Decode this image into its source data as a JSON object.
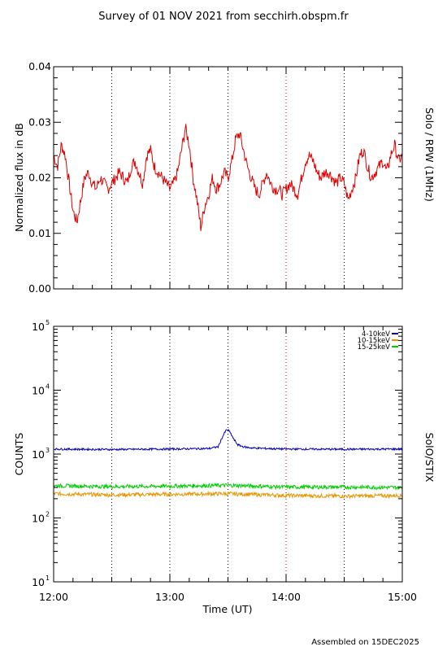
{
  "page": {
    "title": "Survey of 01 NOV 2021 from secchirh.obspm.fr",
    "footer": "Assembled on 15DEC2025"
  },
  "chart_data": [
    {
      "type": "line",
      "ylabel": "Normalized flux in dB",
      "right_label": "Solo / RPW (1MHz)",
      "xlim": [
        "12:00",
        "15:00"
      ],
      "ylim": [
        0.0,
        0.04
      ],
      "yticks": [
        "0.00",
        "0.01",
        "0.02",
        "0.03",
        "0.04"
      ],
      "x_minor_ticks_per_major": 6,
      "y_minor_ticks_per_major": 5,
      "grid": "dotted vertical lines at 12:30, 13:00, 13:30, 14:00, 14:30",
      "grid_colors": [
        "#000000",
        "#000000",
        "#000000",
        "#cc0000",
        "#000000"
      ],
      "series": [
        {
          "color": "#dd0000",
          "x": [
            "12:00",
            "12:02",
            "12:04",
            "12:06",
            "12:08",
            "12:10",
            "12:12",
            "12:14",
            "12:16",
            "12:18",
            "12:20",
            "12:22",
            "12:24",
            "12:26",
            "12:28",
            "12:30",
            "12:32",
            "12:34",
            "12:36",
            "12:38",
            "12:40",
            "12:42",
            "12:44",
            "12:46",
            "12:48",
            "12:50",
            "12:52",
            "12:54",
            "12:56",
            "12:58",
            "13:00",
            "13:02",
            "13:04",
            "13:06",
            "13:08",
            "13:10",
            "13:12",
            "13:14",
            "13:16",
            "13:18",
            "13:20",
            "13:22",
            "13:24",
            "13:26",
            "13:28",
            "13:30",
            "13:32",
            "13:34",
            "13:36",
            "13:38",
            "13:40",
            "13:42",
            "13:44",
            "13:46",
            "13:48",
            "13:50",
            "13:52",
            "13:54",
            "13:56",
            "13:58",
            "14:00",
            "14:02",
            "14:04",
            "14:06",
            "14:08",
            "14:10",
            "14:12",
            "14:14",
            "14:16",
            "14:18",
            "14:20",
            "14:22",
            "14:24",
            "14:26",
            "14:28",
            "14:30",
            "14:32",
            "14:34",
            "14:36",
            "14:38",
            "14:40",
            "14:42",
            "14:44",
            "14:46",
            "14:48",
            "14:50",
            "14:52",
            "14:54",
            "14:56",
            "14:58",
            "15:00"
          ],
          "y": [
            0.024,
            0.022,
            0.026,
            0.024,
            0.019,
            0.014,
            0.012,
            0.016,
            0.02,
            0.021,
            0.019,
            0.018,
            0.02,
            0.019,
            0.018,
            0.019,
            0.02,
            0.021,
            0.02,
            0.019,
            0.022,
            0.023,
            0.021,
            0.019,
            0.024,
            0.025,
            0.022,
            0.021,
            0.02,
            0.019,
            0.018,
            0.019,
            0.021,
            0.025,
            0.029,
            0.026,
            0.02,
            0.016,
            0.011,
            0.015,
            0.017,
            0.02,
            0.018,
            0.019,
            0.021,
            0.02,
            0.023,
            0.027,
            0.028,
            0.025,
            0.022,
            0.02,
            0.018,
            0.017,
            0.019,
            0.021,
            0.019,
            0.018,
            0.018,
            0.017,
            0.018,
            0.019,
            0.018,
            0.017,
            0.02,
            0.023,
            0.024,
            0.023,
            0.021,
            0.02,
            0.021,
            0.021,
            0.02,
            0.019,
            0.02,
            0.019,
            0.016,
            0.018,
            0.02,
            0.024,
            0.025,
            0.022,
            0.02,
            0.021,
            0.022,
            0.023,
            0.021,
            0.024,
            0.026,
            0.023,
            0.024
          ]
        }
      ]
    },
    {
      "type": "line",
      "xlabel": "Time (UT)",
      "ylabel": "COUNTS",
      "right_label": "SolO/STIX",
      "scale": "log",
      "xlim": [
        "12:00",
        "15:00"
      ],
      "xticks": [
        "12:00",
        "13:00",
        "14:00",
        "15:00"
      ],
      "ylim": [
        10,
        100000
      ],
      "yticks": [
        {
          "base": "10",
          "exp": "1"
        },
        {
          "base": "10",
          "exp": "2"
        },
        {
          "base": "10",
          "exp": "3"
        },
        {
          "base": "10",
          "exp": "4"
        },
        {
          "base": "10",
          "exp": "5"
        }
      ],
      "x_minor_ticks_per_major": 6,
      "grid": "dotted vertical lines at 12:30, 13:00, 13:30, 14:00, 14:30",
      "grid_colors": [
        "#000000",
        "#000000",
        "#000000",
        "#cc0000",
        "#000000"
      ],
      "legend_position": "top-right",
      "series": [
        {
          "name": "4-10keV",
          "color": "#0000bb",
          "x": [
            "12:00",
            "12:30",
            "13:00",
            "13:20",
            "13:25",
            "13:27",
            "13:29",
            "13:30",
            "13:31",
            "13:33",
            "13:35",
            "13:38",
            "13:42",
            "13:50",
            "14:00",
            "14:30",
            "15:00"
          ],
          "y": [
            1200,
            1180,
            1200,
            1220,
            1300,
            1800,
            2350,
            2400,
            2200,
            1700,
            1400,
            1300,
            1250,
            1220,
            1200,
            1190,
            1200
          ]
        },
        {
          "name": "10-15keV",
          "color": "#e69500",
          "x": [
            "12:00",
            "12:30",
            "13:00",
            "13:30",
            "14:00",
            "14:30",
            "15:00"
          ],
          "y": [
            240,
            230,
            235,
            240,
            225,
            220,
            225
          ]
        },
        {
          "name": "15-25keV",
          "color": "#00cc00",
          "x": [
            "12:00",
            "12:30",
            "13:00",
            "13:30",
            "14:00",
            "14:30",
            "15:00"
          ],
          "y": [
            320,
            310,
            315,
            325,
            305,
            305,
            300
          ]
        }
      ]
    }
  ]
}
